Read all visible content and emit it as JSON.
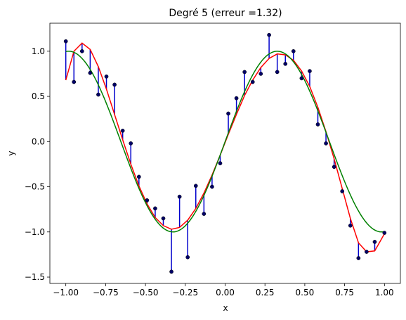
{
  "chart_data": {
    "type": "scatter",
    "title": "Degré 5 (erreur =1.32)",
    "xlabel": "x",
    "ylabel": "y",
    "xlim": [
      -1.1,
      1.1
    ],
    "ylim": [
      -1.57,
      1.31
    ],
    "xticks": [
      "−1.00",
      "−0.75",
      "−0.50",
      "−0.25",
      "0.00",
      "0.25",
      "0.50",
      "0.75",
      "1.00"
    ],
    "xtick_values": [
      -1.0,
      -0.75,
      -0.5,
      -0.25,
      0.0,
      0.25,
      0.5,
      0.75,
      1.0
    ],
    "yticks": [
      "−1.5",
      "−1.0",
      "−0.5",
      "0.0",
      "0.5",
      "1.0"
    ],
    "ytick_values": [
      -1.5,
      -1.0,
      -0.5,
      0.0,
      0.5,
      1.0
    ],
    "grid": false,
    "colors": {
      "points": "#000066",
      "residuals": "#0000cc",
      "fit": "#ff0000",
      "true": "#008000"
    },
    "series": [
      {
        "kind": "points",
        "x": [
          -1.0,
          -0.949,
          -0.898,
          -0.847,
          -0.796,
          -0.745,
          -0.694,
          -0.643,
          -0.592,
          -0.541,
          -0.49,
          -0.439,
          -0.388,
          -0.337,
          -0.286,
          -0.235,
          -0.184,
          -0.133,
          -0.082,
          -0.031,
          0.02,
          0.071,
          0.122,
          0.173,
          0.224,
          0.276,
          0.327,
          0.378,
          0.429,
          0.48,
          0.531,
          0.582,
          0.633,
          0.684,
          0.735,
          0.786,
          0.837,
          0.888,
          0.939,
          1.0
        ],
        "y": [
          1.11,
          0.66,
          1.0,
          0.76,
          0.52,
          0.72,
          0.63,
          0.12,
          -0.02,
          -0.39,
          -0.65,
          -0.74,
          -0.85,
          -1.44,
          -0.61,
          -1.28,
          -0.49,
          -0.8,
          -0.5,
          -0.24,
          0.31,
          0.48,
          0.77,
          0.66,
          0.75,
          1.18,
          0.77,
          0.86,
          1.0,
          0.7,
          0.78,
          0.19,
          -0.02,
          -0.28,
          -0.55,
          -0.93,
          -1.29,
          -1.22,
          -1.11,
          -1.01
        ]
      },
      {
        "kind": "fit",
        "x": [
          -1.0,
          -0.949,
          -0.898,
          -0.847,
          -0.796,
          -0.745,
          -0.694,
          -0.643,
          -0.592,
          -0.541,
          -0.49,
          -0.439,
          -0.388,
          -0.337,
          -0.286,
          -0.235,
          -0.184,
          -0.133,
          -0.082,
          -0.031,
          0.02,
          0.071,
          0.122,
          0.173,
          0.224,
          0.276,
          0.327,
          0.378,
          0.429,
          0.48,
          0.531,
          0.582,
          0.633,
          0.684,
          0.735,
          0.786,
          0.837,
          0.888,
          0.939,
          1.0
        ],
        "y": [
          0.68,
          1.0,
          1.09,
          1.02,
          0.83,
          0.58,
          0.3,
          0.02,
          -0.25,
          -0.49,
          -0.69,
          -0.84,
          -0.93,
          -0.97,
          -0.95,
          -0.87,
          -0.74,
          -0.57,
          -0.37,
          -0.15,
          0.08,
          0.3,
          0.51,
          0.68,
          0.82,
          0.92,
          0.97,
          0.96,
          0.9,
          0.78,
          0.61,
          0.38,
          0.11,
          -0.19,
          -0.52,
          -0.85,
          -1.12,
          -1.22,
          -1.21,
          -1.02
        ]
      },
      {
        "kind": "true",
        "function": "sin(4.8x)",
        "x_range": [
          -1.0,
          1.0
        ]
      }
    ]
  }
}
